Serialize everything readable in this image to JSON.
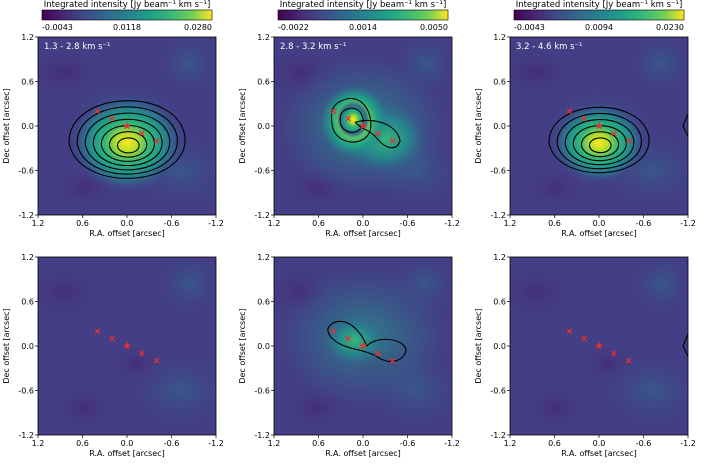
{
  "figure": {
    "colorbar_label": "Integrated intensity [Jy beam⁻¹ km s⁻¹]",
    "x_axis_label": "R.A. offset [arcsec]",
    "y_axis_label": "Dec offset [arcsec]",
    "tick_labels": [
      "1.2",
      "0.6",
      "0.0",
      "-0.6",
      "-1.2"
    ],
    "colors": {
      "bg": "#433e85",
      "bright": "#fde725",
      "contour": "#000000",
      "marker": "#e8302e"
    }
  },
  "columns": [
    {
      "range_label": "1.3 - 2.8 km s⁻¹",
      "colorbar_ticks": [
        "-0.0043",
        "0.0118",
        "0.0280"
      ]
    },
    {
      "range_label": "2.8 - 3.2 km s⁻¹",
      "colorbar_ticks": [
        "-0.0022",
        "0.0014",
        "0.0050"
      ]
    },
    {
      "range_label": "3.2 - 4.6 km s⁻¹",
      "colorbar_ticks": [
        "-0.0043",
        "0.0094",
        "0.0230"
      ]
    }
  ],
  "chart_data": {
    "type": "heatmap",
    "panels": [
      {
        "row": 0,
        "col": 0,
        "emission_peak_offset_arcsec": [
          0.0,
          -0.25
        ],
        "contour_levels": 7,
        "markers_arcsec": [
          [
            0.4,
            0.2
          ],
          [
            0.2,
            0.1
          ],
          [
            0.0,
            0.0
          ],
          [
            -0.2,
            -0.1
          ],
          [
            -0.4,
            -0.2
          ]
        ]
      },
      {
        "row": 0,
        "col": 1,
        "emission_peak_offset_arcsec": [
          0.2,
          0.1
        ],
        "contour_levels": 3,
        "markers_arcsec": [
          [
            0.4,
            0.2
          ],
          [
            0.2,
            0.1
          ],
          [
            0.0,
            0.0
          ],
          [
            -0.2,
            -0.1
          ],
          [
            -0.4,
            -0.2
          ]
        ]
      },
      {
        "row": 0,
        "col": 2,
        "emission_peak_offset_arcsec": [
          0.0,
          -0.25
        ],
        "contour_levels": 6,
        "markers_arcsec": [
          [
            0.4,
            0.2
          ],
          [
            0.2,
            0.1
          ],
          [
            0.0,
            0.0
          ],
          [
            -0.2,
            -0.1
          ],
          [
            -0.4,
            -0.2
          ]
        ]
      },
      {
        "row": 1,
        "col": 0,
        "emission_peak_offset_arcsec": null,
        "contour_levels": 0,
        "markers_arcsec": [
          [
            0.4,
            0.2
          ],
          [
            0.2,
            0.1
          ],
          [
            0.0,
            0.0
          ],
          [
            -0.2,
            -0.1
          ],
          [
            -0.4,
            -0.2
          ]
        ]
      },
      {
        "row": 1,
        "col": 1,
        "emission_peak_offset_arcsec": [
          0.2,
          0.1
        ],
        "contour_levels": 1,
        "markers_arcsec": [
          [
            0.4,
            0.2
          ],
          [
            0.2,
            0.1
          ],
          [
            0.0,
            0.0
          ],
          [
            -0.2,
            -0.1
          ],
          [
            -0.4,
            -0.2
          ]
        ]
      },
      {
        "row": 1,
        "col": 2,
        "emission_peak_offset_arcsec": null,
        "contour_levels": 0,
        "markers_arcsec": [
          [
            0.4,
            0.2
          ],
          [
            0.2,
            0.1
          ],
          [
            0.0,
            0.0
          ],
          [
            -0.2,
            -0.1
          ],
          [
            -0.4,
            -0.2
          ]
        ]
      }
    ],
    "xlim": [
      1.2,
      -1.2
    ],
    "ylim": [
      -1.2,
      1.2
    ]
  }
}
